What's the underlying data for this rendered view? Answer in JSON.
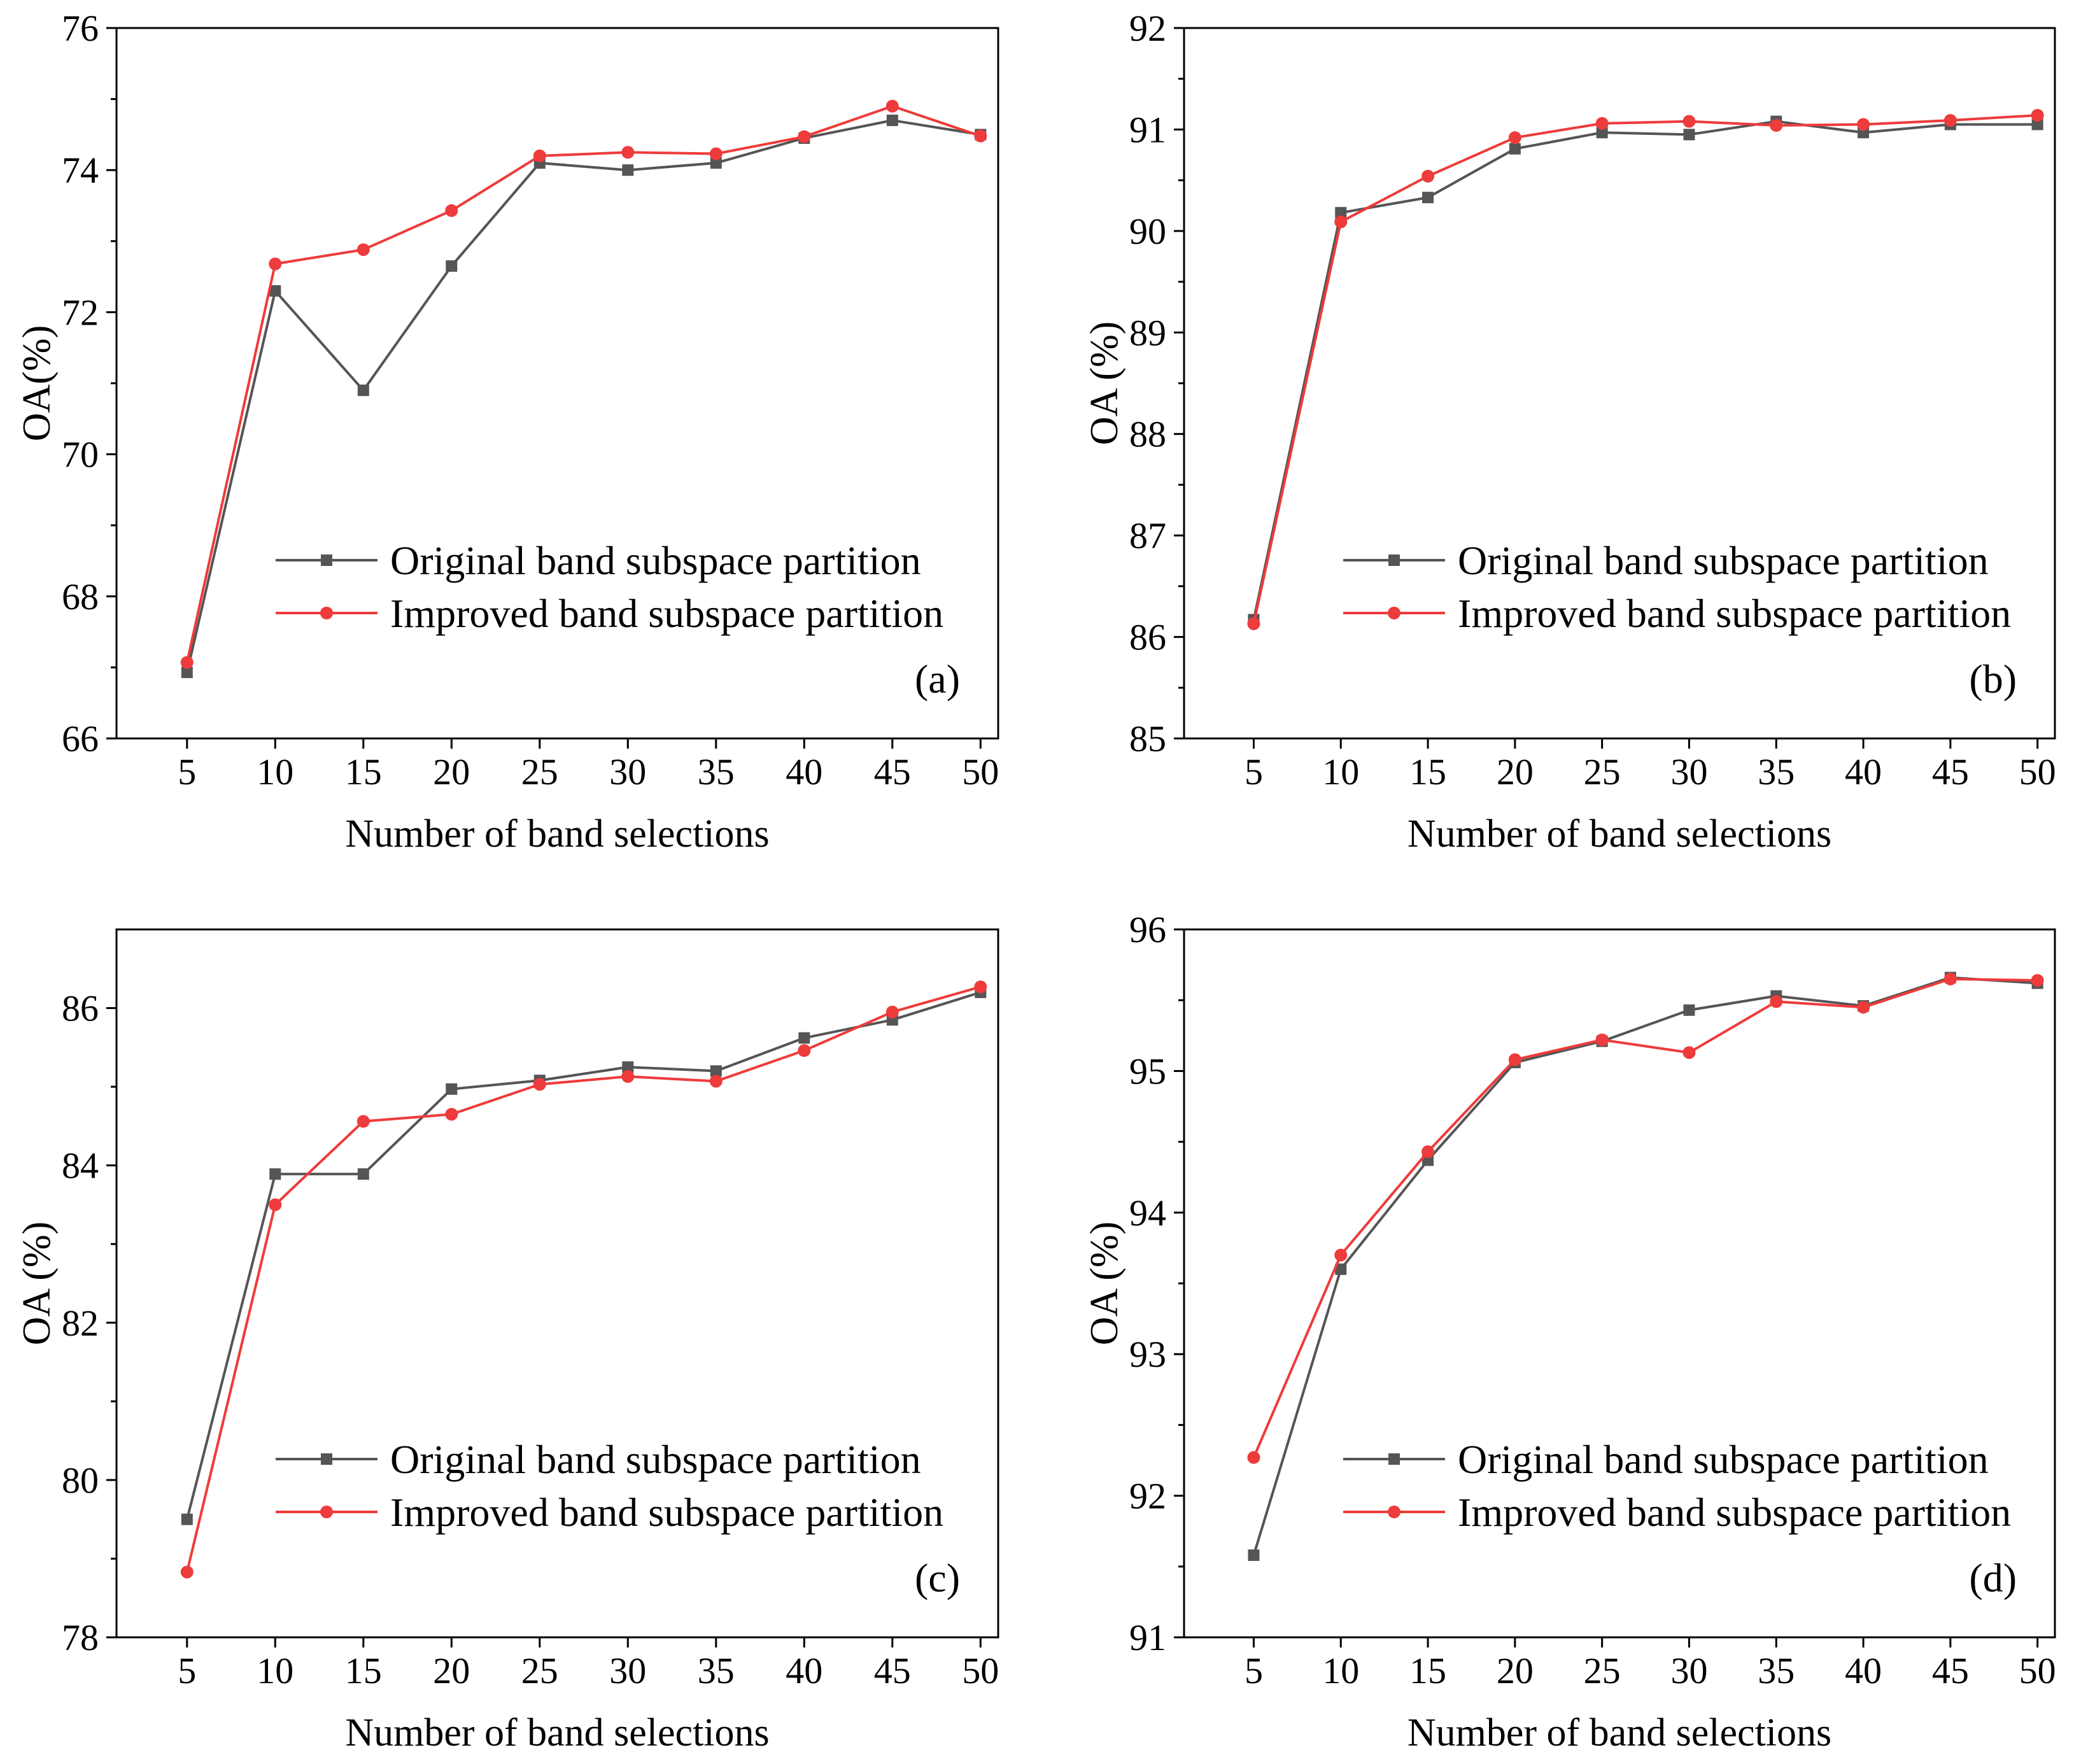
{
  "chart_data": [
    {
      "type": "line",
      "panel_label": "(a)",
      "xlabel": "Number of band selections",
      "ylabel": "OA(%)",
      "x": [
        5,
        10,
        15,
        20,
        25,
        30,
        35,
        40,
        45,
        50
      ],
      "xlim": [
        1,
        51
      ],
      "ylim": [
        66,
        76
      ],
      "yticks": [
        66,
        68,
        70,
        72,
        74,
        76
      ],
      "legend_position": "lower-right",
      "series": [
        {
          "name": "Original band subspace partition",
          "color": "#555555",
          "marker": "square",
          "values": [
            66.93,
            72.3,
            70.9,
            72.65,
            74.1,
            74.0,
            74.1,
            74.45,
            74.7,
            74.5
          ]
        },
        {
          "name": "Improved band subspace partition",
          "color": "#ee3b3b",
          "marker": "circle",
          "values": [
            67.07,
            72.68,
            72.88,
            73.43,
            74.2,
            74.25,
            74.23,
            74.47,
            74.9,
            74.48
          ]
        }
      ]
    },
    {
      "type": "line",
      "panel_label": "(b)",
      "xlabel": "Number of band selections",
      "ylabel": "OA (%)",
      "x": [
        5,
        10,
        15,
        20,
        25,
        30,
        35,
        40,
        45,
        50
      ],
      "xlim": [
        1,
        51
      ],
      "ylim": [
        85,
        92
      ],
      "yticks": [
        85,
        86,
        87,
        88,
        89,
        90,
        91,
        92
      ],
      "legend_position": "lower-right",
      "series": [
        {
          "name": "Original band subspace partition",
          "color": "#555555",
          "marker": "square",
          "values": [
            86.17,
            90.18,
            90.33,
            90.81,
            90.97,
            90.95,
            91.08,
            90.97,
            91.05,
            91.05
          ]
        },
        {
          "name": "Improved band subspace partition",
          "color": "#ee3b3b",
          "marker": "circle",
          "values": [
            86.13,
            90.09,
            90.54,
            90.92,
            91.06,
            91.08,
            91.04,
            91.05,
            91.09,
            91.14
          ]
        }
      ]
    },
    {
      "type": "line",
      "panel_label": "(c)",
      "xlabel": "Number of band selections",
      "ylabel": "OA (%)",
      "x": [
        5,
        10,
        15,
        20,
        25,
        30,
        35,
        40,
        45,
        50
      ],
      "xlim": [
        1,
        51
      ],
      "ylim": [
        78,
        87
      ],
      "yticks": [
        78,
        80,
        82,
        84,
        86
      ],
      "legend_position": "lower-right",
      "series": [
        {
          "name": "Original band subspace partition",
          "color": "#555555",
          "marker": "square",
          "values": [
            79.5,
            83.89,
            83.89,
            84.97,
            85.08,
            85.25,
            85.2,
            85.62,
            85.85,
            86.2
          ]
        },
        {
          "name": "Improved band subspace partition",
          "color": "#ee3b3b",
          "marker": "circle",
          "values": [
            78.83,
            83.5,
            84.56,
            84.65,
            85.03,
            85.13,
            85.07,
            85.46,
            85.95,
            86.27
          ]
        }
      ]
    },
    {
      "type": "line",
      "panel_label": "(d)",
      "xlabel": "Number of band selections",
      "ylabel": "OA (%)",
      "x": [
        5,
        10,
        15,
        20,
        25,
        30,
        35,
        40,
        45,
        50
      ],
      "xlim": [
        1,
        51
      ],
      "ylim": [
        91,
        96
      ],
      "yticks": [
        91,
        92,
        93,
        94,
        95,
        96
      ],
      "legend_position": "lower-right",
      "series": [
        {
          "name": "Original band subspace partition",
          "color": "#555555",
          "marker": "square",
          "values": [
            91.58,
            93.6,
            94.37,
            95.06,
            95.21,
            95.43,
            95.53,
            95.46,
            95.66,
            95.62
          ]
        },
        {
          "name": "Improved band subspace partition",
          "color": "#ee3b3b",
          "marker": "circle",
          "values": [
            92.27,
            93.7,
            94.43,
            95.08,
            95.22,
            95.13,
            95.49,
            95.45,
            95.65,
            95.64
          ]
        }
      ]
    }
  ]
}
